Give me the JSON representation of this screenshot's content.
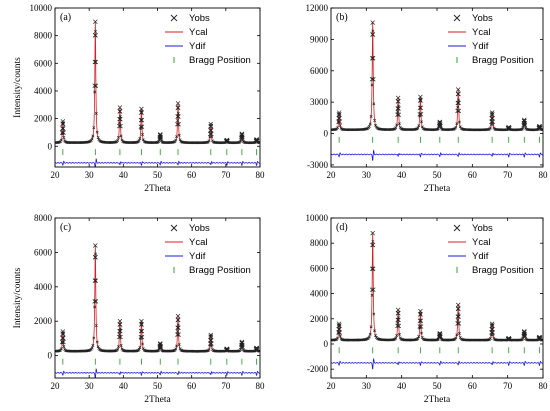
{
  "chart_data": [
    {
      "type": "line",
      "panel_label": "(a)",
      "xlabel": "2Theta",
      "ylabel": "Intensity/counts",
      "xlim": [
        20,
        80
      ],
      "ylim": [
        -1500,
        10000
      ],
      "x_ticks": [
        20,
        30,
        40,
        50,
        60,
        70,
        80
      ],
      "y_ticks": [
        0,
        2000,
        4000,
        6000,
        8000,
        10000
      ],
      "x_tick_labels": [
        "20",
        "30",
        "40",
        "50",
        "60",
        "70",
        "80"
      ],
      "y_tick_labels": [
        "0",
        "2000",
        "4000",
        "6000",
        "8000",
        "10000"
      ],
      "legend": {
        "position": "top-right",
        "entries": [
          "Yobs",
          "Ycal",
          "Ydif",
          "Bragg Position"
        ]
      },
      "background": 250,
      "peaks": [
        [
          22.3,
          1800
        ],
        [
          31.8,
          9000
        ],
        [
          39.0,
          2800
        ],
        [
          45.3,
          2700
        ],
        [
          50.8,
          850
        ],
        [
          56.0,
          3100
        ],
        [
          65.6,
          1600
        ],
        [
          70.3,
          450
        ],
        [
          74.7,
          900
        ],
        [
          79.0,
          500
        ]
      ],
      "bragg_level": -420,
      "ydif_level": -1200,
      "ydif_spike": 450
    },
    {
      "type": "line",
      "panel_label": "(b)",
      "xlabel": "2Theta",
      "ylabel": "",
      "xlim": [
        20,
        80
      ],
      "ylim": [
        -3200,
        12000
      ],
      "x_ticks": [
        20,
        30,
        40,
        50,
        60,
        70,
        80
      ],
      "y_ticks": [
        -3000,
        0,
        3000,
        6000,
        9000,
        12000
      ],
      "x_tick_labels": [
        "20",
        "30",
        "40",
        "50",
        "60",
        "70",
        "80"
      ],
      "y_tick_labels": [
        "-3000",
        "0",
        "3000",
        "6000",
        "9000",
        "12000"
      ],
      "legend": {
        "position": "top-right",
        "entries": [
          "Yobs",
          "Ycal",
          "Ydif",
          "Bragg Position"
        ]
      },
      "background": 350,
      "peaks": [
        [
          22.3,
          2000
        ],
        [
          31.8,
          10600
        ],
        [
          39.0,
          3400
        ],
        [
          45.3,
          3500
        ],
        [
          50.8,
          1100
        ],
        [
          56.0,
          4200
        ],
        [
          65.6,
          2000
        ],
        [
          70.3,
          600
        ],
        [
          74.7,
          1300
        ],
        [
          79.0,
          700
        ]
      ],
      "bragg_level": -600,
      "ydif_level": -2000,
      "ydif_spike": 600
    },
    {
      "type": "line",
      "panel_label": "(c)",
      "xlabel": "2Theta",
      "ylabel": "Intensity/counts",
      "xlim": [
        20,
        80
      ],
      "ylim": [
        -1300,
        8000
      ],
      "x_ticks": [
        20,
        30,
        40,
        50,
        60,
        70,
        80
      ],
      "y_ticks": [
        0,
        2000,
        4000,
        6000,
        8000
      ],
      "x_tick_labels": [
        "20",
        "30",
        "40",
        "50",
        "60",
        "70",
        "80"
      ],
      "y_tick_labels": [
        "0",
        "2000",
        "4000",
        "6000",
        "8000"
      ],
      "legend": {
        "position": "top-right",
        "entries": [
          "Yobs",
          "Ycal",
          "Ydif",
          "Bragg Position"
        ]
      },
      "background": 250,
      "peaks": [
        [
          22.3,
          1400
        ],
        [
          31.8,
          6400
        ],
        [
          39.0,
          2000
        ],
        [
          45.3,
          2000
        ],
        [
          50.8,
          700
        ],
        [
          56.0,
          2300
        ],
        [
          65.6,
          1200
        ],
        [
          70.3,
          400
        ],
        [
          74.7,
          800
        ],
        [
          79.0,
          450
        ]
      ],
      "bragg_level": -350,
      "ydif_level": -1000,
      "ydif_spike": 350
    },
    {
      "type": "line",
      "panel_label": "(d)",
      "xlabel": "2Theta",
      "ylabel": "",
      "xlim": [
        20,
        80
      ],
      "ylim": [
        -2700,
        10000
      ],
      "x_ticks": [
        20,
        30,
        40,
        50,
        60,
        70,
        80
      ],
      "y_ticks": [
        -2000,
        0,
        2000,
        4000,
        6000,
        8000,
        10000
      ],
      "x_tick_labels": [
        "20",
        "30",
        "40",
        "50",
        "60",
        "70",
        "80"
      ],
      "y_tick_labels": [
        "-2000",
        "0",
        "2000",
        "4000",
        "6000",
        "8000",
        "10000"
      ],
      "legend": {
        "position": "top-right",
        "entries": [
          "Yobs",
          "Ycal",
          "Ydif",
          "Bragg Position"
        ]
      },
      "background": 300,
      "peaks": [
        [
          22.3,
          1600
        ],
        [
          31.8,
          8800
        ],
        [
          39.0,
          2700
        ],
        [
          45.3,
          2600
        ],
        [
          50.8,
          850
        ],
        [
          56.0,
          3100
        ],
        [
          65.6,
          1600
        ],
        [
          70.3,
          450
        ],
        [
          74.7,
          1000
        ],
        [
          79.0,
          550
        ]
      ],
      "bragg_level": -500,
      "ydif_level": -1500,
      "ydif_spike": 500
    }
  ],
  "styles": {
    "yobs_color": "#222222",
    "ycal_color": "#d42020",
    "ydif_color": "#1a1adb",
    "bragg_color": "#1a9a1a",
    "axis_color": "#000000"
  },
  "legend_symbols": {
    "yobs": "cross-marker",
    "ycal": "red-line",
    "ydif": "blue-line",
    "bragg": "green-tick"
  }
}
